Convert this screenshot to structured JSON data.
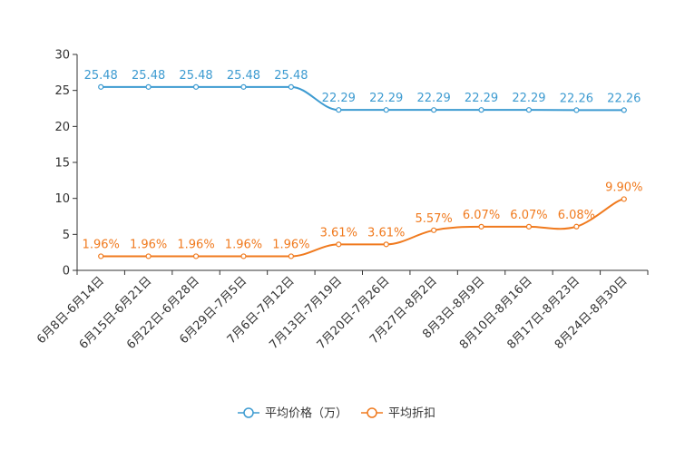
{
  "chart_data": {
    "type": "line",
    "title": "",
    "xlabel": "",
    "ylabel": "",
    "ylim": [
      0,
      30
    ],
    "yticks": [
      0,
      5,
      10,
      15,
      20,
      25,
      30
    ],
    "grid": false,
    "legend_position": "bottom-center",
    "categories": [
      "6月8日-6月14日",
      "6月15日-6月21日",
      "6月22日-6月28日",
      "6月29日-7月5日",
      "7月6日-7月12日",
      "7月13日-7月19日",
      "7月20日-7月26日",
      "7月27日-8月2日",
      "8月3日-8月9日",
      "8月10日-8月16日",
      "8月17日-8月23日",
      "8月24日-8月30日"
    ],
    "series": [
      {
        "name": "平均价格（万）",
        "color": "#3d9bd1",
        "values": [
          25.48,
          25.48,
          25.48,
          25.48,
          25.48,
          22.29,
          22.29,
          22.29,
          22.29,
          22.29,
          22.26,
          22.26
        ],
        "labels": [
          "25.48",
          "25.48",
          "25.48",
          "25.48",
          "25.48",
          "22.29",
          "22.29",
          "22.29",
          "22.29",
          "22.29",
          "22.26",
          "22.26"
        ]
      },
      {
        "name": "平均折扣",
        "color": "#f07a1e",
        "values": [
          1.96,
          1.96,
          1.96,
          1.96,
          1.96,
          3.61,
          3.61,
          5.57,
          6.07,
          6.07,
          6.08,
          9.9
        ],
        "labels": [
          "1.96%",
          "1.96%",
          "1.96%",
          "1.96%",
          "1.96%",
          "3.61%",
          "3.61%",
          "5.57%",
          "6.07%",
          "6.07%",
          "6.08%",
          "9.90%"
        ]
      }
    ]
  }
}
